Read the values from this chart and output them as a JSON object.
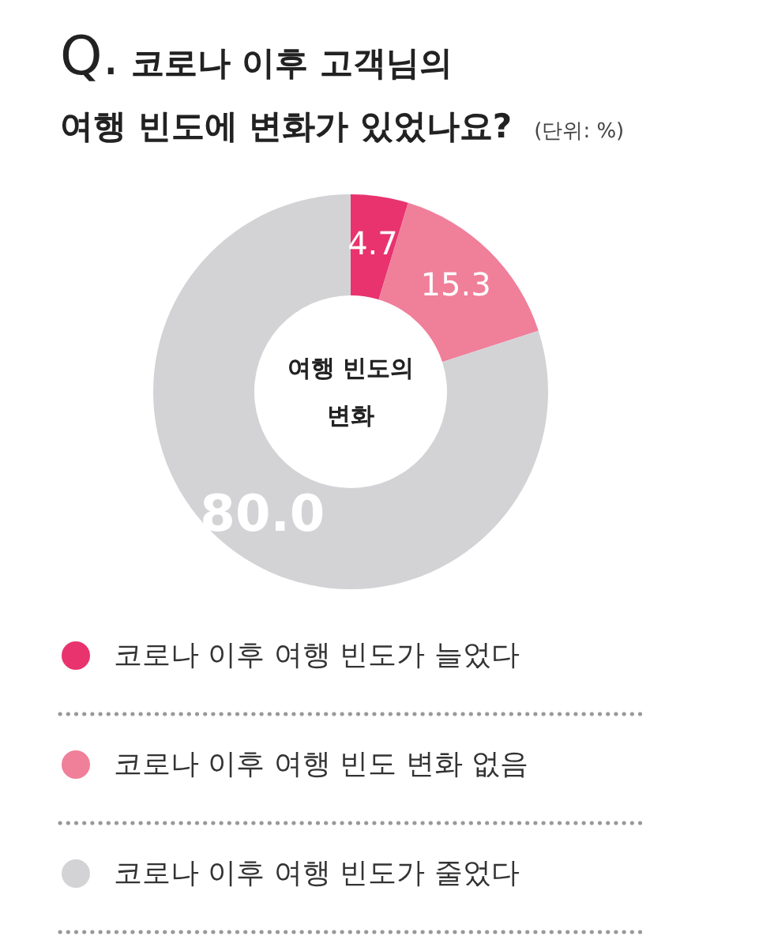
{
  "chart_data": {
    "type": "donut",
    "title": "Q. 코로나 이후 고객님의\n여행 빈도에 변화가 있었나요?",
    "subtitle": "(단위: %)",
    "categories": [
      "코로나 이후 여행 빈도가 늘었다",
      "코로나 이후 여행 빈도 변화 없음",
      "코로나 이후 여행 빈도가 줄었다"
    ],
    "values": [
      4.7,
      15.3,
      80.0
    ],
    "colors": [
      "#e8336f",
      "#f07f9a",
      "#d3d3d6"
    ],
    "value_labels": [
      "4.7",
      "15.3",
      "80.0"
    ],
    "annotations": [
      "여행 빈도의\n변화"
    ],
    "legend": "bottom"
  }
}
